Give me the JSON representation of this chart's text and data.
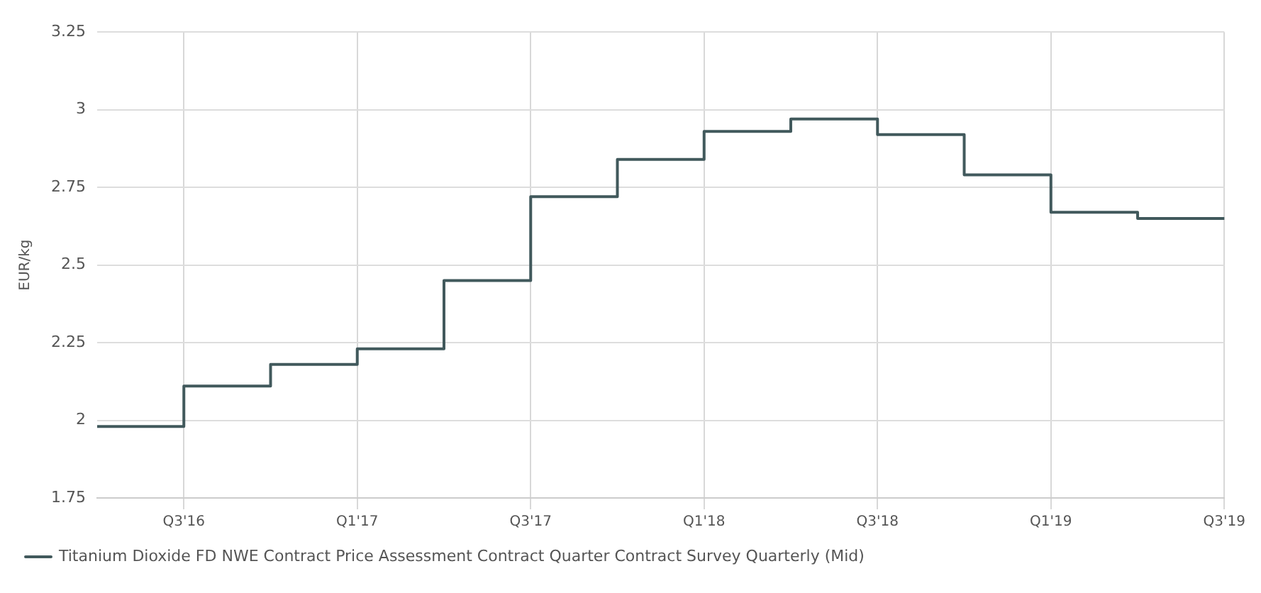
{
  "chart_data": {
    "type": "step",
    "ylabel": "EUR/kg",
    "categories": [
      null,
      "Q3'16",
      null,
      "Q1'17",
      null,
      "Q3'17",
      null,
      "Q1'18",
      null,
      "Q3'18",
      null,
      "Q1'19",
      null,
      "Q3'19"
    ],
    "series": [
      {
        "name": "Titanium Dioxide FD NWE Contract Price Assessment Contract Quarter Contract Survey Quarterly (Mid)",
        "color": "#41595c",
        "values": [
          1.98,
          2.11,
          2.18,
          2.23,
          2.45,
          2.72,
          2.84,
          2.93,
          2.97,
          2.92,
          2.79,
          2.67,
          2.65,
          2.65
        ]
      }
    ],
    "ylim": [
      1.75,
      3.25
    ],
    "yticks": [
      1.75,
      2,
      2.25,
      2.5,
      2.75,
      3,
      3.25
    ],
    "grid": true,
    "legend": "bottom",
    "marker": "none",
    "line_style": "solid"
  }
}
